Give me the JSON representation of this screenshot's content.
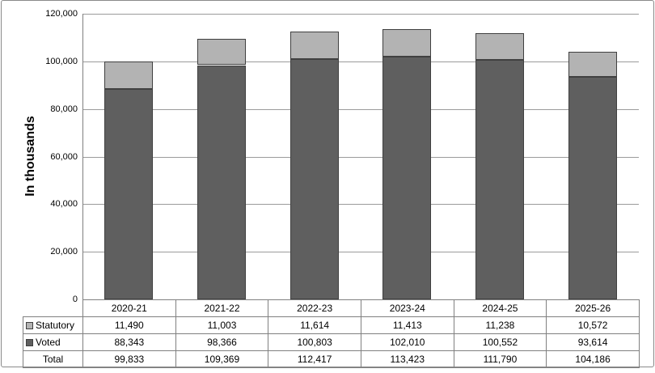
{
  "chart_data": {
    "type": "bar",
    "stacked": true,
    "title": "",
    "xlabel": "",
    "ylabel": "In thousands",
    "categories": [
      "2020-21",
      "2021-22",
      "2022-23",
      "2023-24",
      "2024-25",
      "2025-26"
    ],
    "series": [
      {
        "name": "Statutory",
        "color": "#b3b3b3",
        "values": [
          11490,
          11003,
          11614,
          11413,
          11238,
          10572
        ]
      },
      {
        "name": "Voted",
        "color": "#5f5f5f",
        "values": [
          88343,
          98366,
          100803,
          102010,
          100552,
          93614
        ]
      }
    ],
    "totals": [
      99833,
      109369,
      112417,
      113423,
      111790,
      104186
    ],
    "ylim": [
      0,
      120000
    ],
    "ytick_step": 20000,
    "ytick_labels": [
      "0",
      "20,000",
      "40,000",
      "60,000",
      "80,000",
      "100,000",
      "120,000"
    ],
    "grid": true,
    "legend_position": "data-table"
  },
  "table": {
    "rows": [
      {
        "label": "Statutory",
        "marker_color": "#b3b3b3",
        "values": [
          "11,490",
          "11,003",
          "11,614",
          "11,413",
          "11,238",
          "10,572"
        ]
      },
      {
        "label": "Voted",
        "marker_color": "#5f5f5f",
        "values": [
          "88,343",
          "98,366",
          "100,803",
          "102,010",
          "100,552",
          "93,614"
        ]
      },
      {
        "label": "Total",
        "marker_color": null,
        "values": [
          "99,833",
          "109,369",
          "112,417",
          "113,423",
          "111,790",
          "104,186"
        ]
      }
    ]
  },
  "colors": {
    "statutory_fill": "#b3b3b3",
    "voted_fill": "#5f5f5f",
    "bar_border": "#404040",
    "gridline": "#9b9b9b",
    "axis_line": "#808080",
    "table_border": "#808080",
    "frame_border": "#8a8a8a",
    "text": "#000000"
  }
}
